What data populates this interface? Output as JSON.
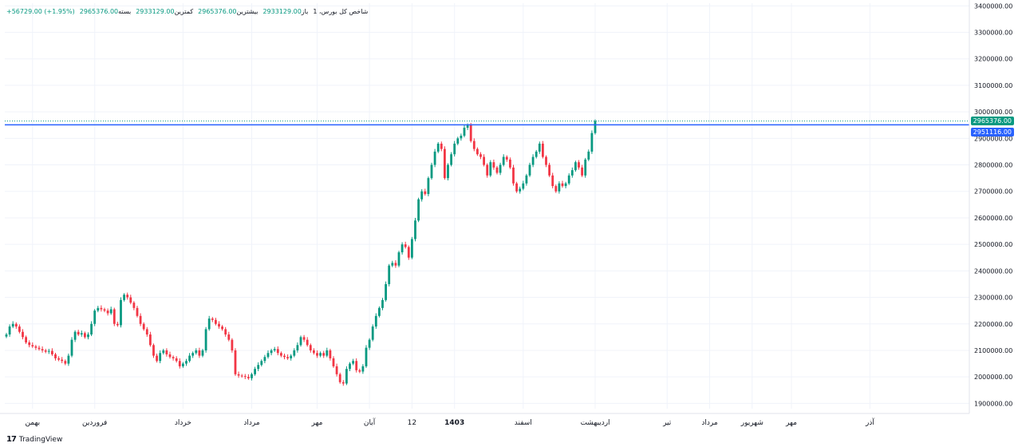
{
  "legend": {
    "symbol": "شاخص کل بورس، 1",
    "open_label": "باز",
    "open_value": "2933129.00",
    "high_label": "بیشترین",
    "high_value": "2965376.00",
    "low_label": "کمترین",
    "low_value": "2933129.00",
    "close_label": "بسته",
    "close_value": "2965376.00",
    "change": "+56729.00 (+1.95%)"
  },
  "brand": {
    "logo": "17",
    "name": "TradingView"
  },
  "price_tags": {
    "last": "2965376.00",
    "line": "2951116.00"
  },
  "colors": {
    "up": "#089981",
    "down": "#f23645",
    "line": "#2962ff",
    "grid": "#f0f3fa",
    "axis_text": "#131722"
  },
  "chart_data": {
    "type": "candlestick",
    "title": "",
    "xlabel": "",
    "ylabel": "",
    "ylim": [
      1880000,
      3410000
    ],
    "y_ticks": [
      1900000,
      2000000,
      2100000,
      2200000,
      2300000,
      2400000,
      2500000,
      2600000,
      2700000,
      2800000,
      2900000,
      3000000,
      3100000,
      3200000,
      3300000,
      3400000
    ],
    "y_tick_labels": [
      "1900000.00",
      "2000000.00",
      "2100000.00",
      "2200000.00",
      "2300000.00",
      "2400000.00",
      "2500000.00",
      "2600000.00",
      "2700000.00",
      "2800000.00",
      "2900000.00",
      "3000000.00",
      "3100000.00",
      "3200000.00",
      "3300000.00",
      "3400000.00"
    ],
    "x_labels": [
      "بهمن",
      "فروردین",
      "خرداد",
      "مرداد",
      "مهر",
      "آبان",
      "12",
      "1403",
      "اسفند",
      "اردیبهشت",
      "تیر",
      "مرداد",
      "شهریور",
      "مهر",
      "آذر"
    ],
    "x_label_index": [
      8,
      27,
      54,
      75,
      95,
      111,
      124,
      137,
      158,
      180,
      202,
      215,
      228,
      240,
      264
    ],
    "horizontal_line": 2951116,
    "last_price": 2965376,
    "close": [
      2160000,
      2190000,
      2200000,
      2190000,
      2170000,
      2150000,
      2130000,
      2120000,
      2115000,
      2110000,
      2105000,
      2100000,
      2095000,
      2098000,
      2085000,
      2070000,
      2065000,
      2060000,
      2050000,
      2080000,
      2140000,
      2170000,
      2160000,
      2165000,
      2150000,
      2160000,
      2200000,
      2250000,
      2260000,
      2255000,
      2250000,
      2240000,
      2255000,
      2200000,
      2195000,
      2290000,
      2310000,
      2300000,
      2280000,
      2260000,
      2230000,
      2200000,
      2180000,
      2160000,
      2120000,
      2080000,
      2060000,
      2090000,
      2100000,
      2085000,
      2075000,
      2070000,
      2060000,
      2040000,
      2050000,
      2060000,
      2080000,
      2090000,
      2100000,
      2080000,
      2100000,
      2180000,
      2220000,
      2215000,
      2200000,
      2190000,
      2180000,
      2160000,
      2140000,
      2100000,
      2010000,
      2005000,
      2003000,
      2000000,
      1995000,
      2010000,
      2030000,
      2045000,
      2060000,
      2075000,
      2090000,
      2100000,
      2105000,
      2090000,
      2080000,
      2075000,
      2070000,
      2080000,
      2100000,
      2120000,
      2150000,
      2140000,
      2120000,
      2100000,
      2090000,
      2080000,
      2090000,
      2080000,
      2100000,
      2070000,
      2040000,
      2010000,
      1980000,
      1975000,
      2030000,
      2050000,
      2060000,
      2025000,
      2020000,
      2040000,
      2110000,
      2140000,
      2190000,
      2230000,
      2260000,
      2290000,
      2350000,
      2420000,
      2430000,
      2420000,
      2470000,
      2500000,
      2490000,
      2450000,
      2520000,
      2590000,
      2670000,
      2700000,
      2690000,
      2750000,
      2800000,
      2850000,
      2880000,
      2860000,
      2750000,
      2800000,
      2840000,
      2880000,
      2900000,
      2910000,
      2940000,
      2950000,
      2890000,
      2860000,
      2840000,
      2830000,
      2800000,
      2760000,
      2810000,
      2790000,
      2770000,
      2800000,
      2830000,
      2820000,
      2790000,
      2730000,
      2700000,
      2710000,
      2730000,
      2760000,
      2800000,
      2830000,
      2850000,
      2880000,
      2830000,
      2800000,
      2760000,
      2720000,
      2700000,
      2730000,
      2720000,
      2730000,
      2760000,
      2780000,
      2810000,
      2790000,
      2760000,
      2820000,
      2850000,
      2920000,
      2965376
    ]
  }
}
